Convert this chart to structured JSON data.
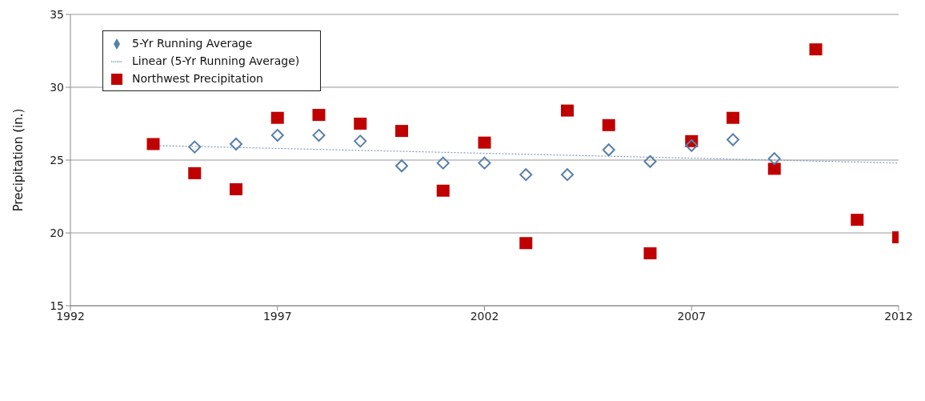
{
  "chart_data": {
    "type": "scatter",
    "ylabel": "Precipitation (in.)",
    "xlim": [
      1992,
      2012
    ],
    "xticks": [
      1992,
      1997,
      2002,
      2007,
      2012
    ],
    "ylim": [
      15,
      35
    ],
    "yticks": [
      15,
      20,
      25,
      30,
      35
    ],
    "grid": "y",
    "legend": "top left",
    "series": [
      {
        "name": "Northwest Precipitation",
        "marker": "square",
        "color": "#c00000",
        "x": [
          1994,
          1995,
          1996,
          1997,
          1998,
          1999,
          2000,
          2001,
          2002,
          2003,
          2004,
          2005,
          2006,
          2007,
          2008,
          2009,
          2010,
          2011,
          2012
        ],
        "values": [
          26.1,
          24.1,
          23.0,
          27.9,
          28.1,
          27.5,
          27.0,
          22.9,
          26.2,
          19.3,
          28.4,
          27.4,
          18.6,
          26.3,
          27.9,
          24.4,
          32.6,
          20.9,
          19.7
        ]
      },
      {
        "name": "5-Yr Running Average",
        "marker": "diamond",
        "color": "#5a7fa8",
        "x": [
          1995,
          1996,
          1997,
          1998,
          1999,
          2000,
          2001,
          2002,
          2003,
          2004,
          2005,
          2006,
          2007,
          2008,
          2009
        ],
        "values": [
          25.9,
          26.1,
          26.7,
          26.7,
          26.3,
          24.6,
          24.8,
          24.8,
          24.0,
          24.0,
          25.7,
          24.9,
          26.0,
          26.4,
          25.1
        ]
      },
      {
        "name": "Linear (5-Yr Running Average)",
        "type": "line",
        "line_style": "dotted",
        "marker": "none",
        "color": "#7f9cbf",
        "x": [
          1994,
          2012
        ],
        "values": [
          26.0,
          24.8
        ]
      }
    ]
  }
}
